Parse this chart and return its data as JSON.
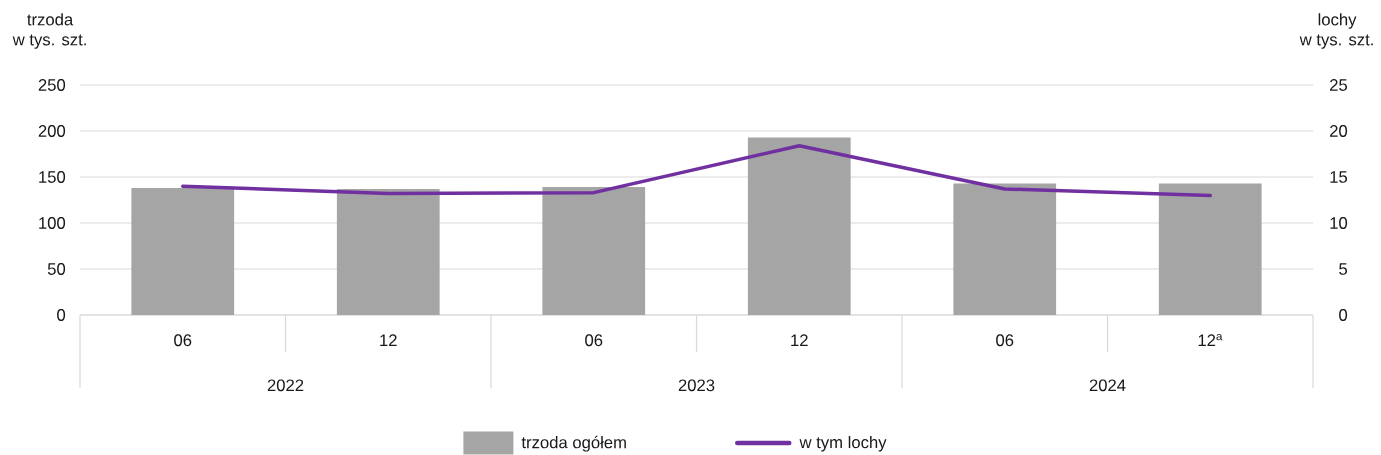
{
  "chart_data": {
    "type": "bar",
    "ylabel": "trzoda\nw tys. szt.",
    "y2label": "lochy\nw tys. szt.",
    "categories": [
      "06",
      "12",
      "06",
      "12",
      "06",
      "12$^{a}$"
    ],
    "series": [
      {
        "name": "trzoda ogółem",
        "color": "#a5a5a5",
        "values": [
          138,
          137,
          139,
          193,
          143,
          143
        ]
      },
      {
        "name": "w tym lochy",
        "type": "line",
        "axis": "y2",
        "color": "#7030a0",
        "values": [
          14.0,
          13.2,
          13.3,
          18.4,
          13.7,
          13.0
        ]
      }
    ],
    "ylim": [
      0,
      250
    ],
    "yticks": [
      0,
      50,
      100,
      150,
      200,
      250
    ],
    "y2lim": [
      0,
      25
    ],
    "y2ticks": [
      0,
      5,
      10,
      15,
      20,
      25
    ],
    "grid": "y",
    "legend": "bottom",
    "line_style": "solid",
    "annotations": [
      "2022",
      "2023",
      "2024"
    ]
  }
}
